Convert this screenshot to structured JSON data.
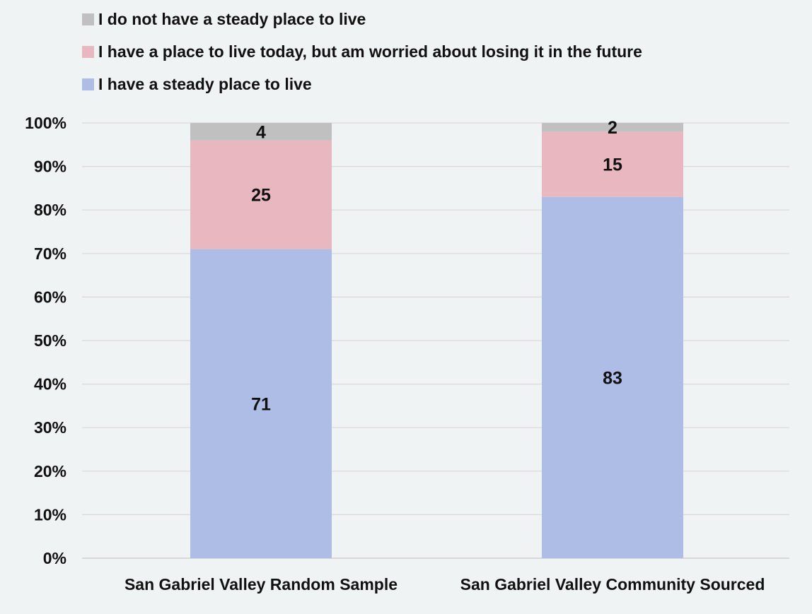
{
  "chart_data": {
    "type": "bar",
    "stacked": true,
    "percent_stacked": true,
    "categories": [
      "San Gabriel Valley Random Sample",
      "San Gabriel Valley Community Sourced"
    ],
    "series": [
      {
        "name": "I have a steady place to live",
        "values": [
          71,
          83
        ],
        "color": "#aebde6"
      },
      {
        "name": "I have a place to live today, but am worried about losing it in the future",
        "values": [
          25,
          15
        ],
        "color": "#e8b7c0"
      },
      {
        "name": "I do not have a steady place to live",
        "values": [
          4,
          2
        ],
        "color": "#c0c0c0"
      }
    ],
    "legend_order": [
      2,
      1,
      0
    ],
    "legend_position": "top",
    "y_ticks": [
      "0%",
      "10%",
      "20%",
      "30%",
      "40%",
      "50%",
      "60%",
      "70%",
      "80%",
      "90%",
      "100%"
    ],
    "ylim": [
      0,
      100
    ],
    "grid": true,
    "data_labels": true,
    "title": "",
    "xlabel": "",
    "ylabel": ""
  }
}
